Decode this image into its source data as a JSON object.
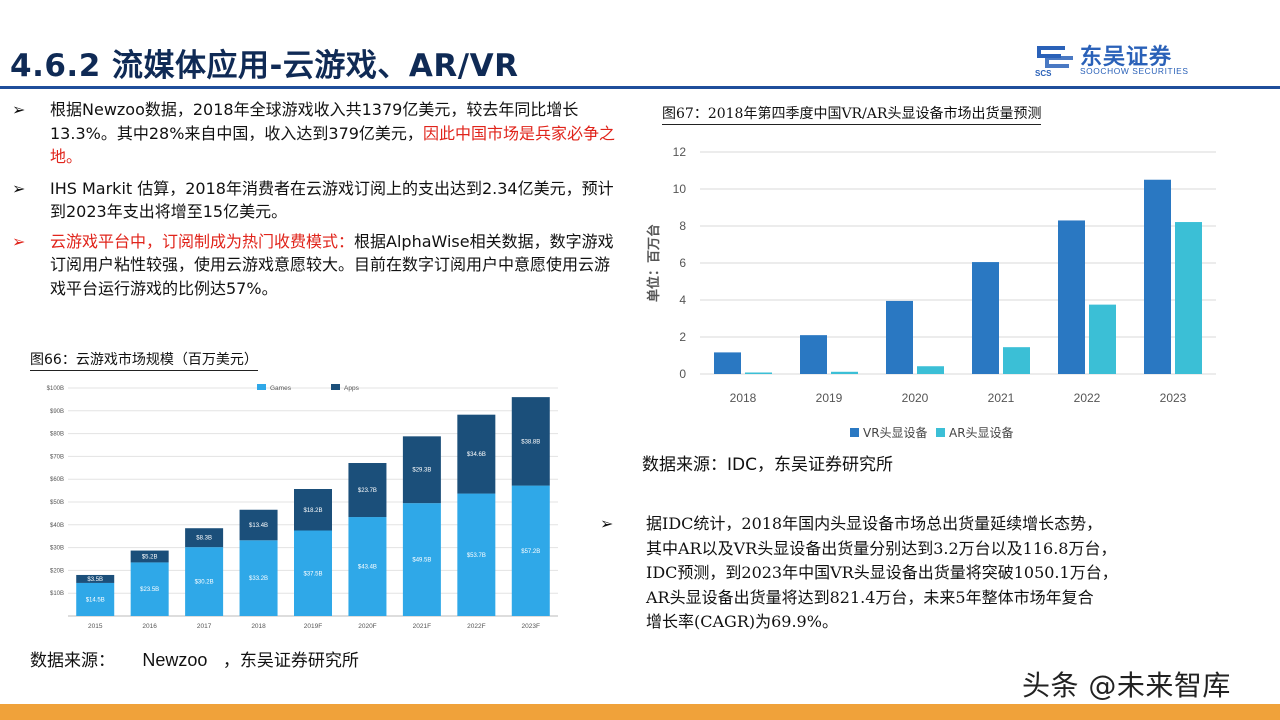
{
  "header": {
    "title": "4.6.2 流媒体应用-云游戏、AR/VR",
    "logo_cn": "东吴证券",
    "logo_en": "SOOCHOW SECURITIES",
    "logo_mark": "SCS"
  },
  "left_bullets": [
    {
      "parts": [
        {
          "text": "根据Newzoo数据，2018年全球游戏收入共1379亿美元，较去年同比增长13.3%。其中28%来自中国，收入达到379亿美元，",
          "red": false
        },
        {
          "text": "因此中国市场是兵家必争之地。",
          "red": true
        }
      ]
    },
    {
      "parts": [
        {
          "text": "IHS Markit 估算，2018年消费者在云游戏订阅上的支出达到2.34亿美元，预计到2023年支出将增至15亿美元。",
          "red": false
        }
      ]
    },
    {
      "arrow_red": true,
      "parts": [
        {
          "text": "云游戏平台中，订阅制成为热门收费模式：",
          "red": true
        },
        {
          "text": "根据AlphaWise相关数据，数字游戏订阅用户粘性较强，使用云游戏意愿较大。目前在数字订阅用户中意愿使用云游戏平台运行游戏的比例达57%。",
          "red": false
        }
      ]
    }
  ],
  "right_bullet": {
    "lines": [
      "据IDC统计，2018年国内头显设备市场总出货量延续增长态势，",
      "其中AR以及VR头显设备出货量分别达到3.2万台以及116.8万台，",
      "IDC预测，到2023年中国VR头显设备出货量将突破1050.1万台，",
      "AR头显设备出货量将达到821.4万台，未来5年整体市场年复合",
      "增长率(CAGR)为69.9%。"
    ]
  },
  "bullet_arrow": "➢",
  "fig66": {
    "caption": "图66：云游戏市场规模（百万美元）",
    "source_parts": [
      "数据来源：",
      "Newzoo",
      "，东吴证券研究所"
    ]
  },
  "fig67": {
    "caption": "图67：2018年第四季度中国VR/AR头显设备市场出货量预测",
    "source": "数据来源：IDC，东吴证券研究所"
  },
  "watermark": "头条 @未来智库",
  "colors": {
    "title": "#0f2a55",
    "accent": "#1f4e9b",
    "red": "#e0241b",
    "games": "#2fa8e8",
    "apps": "#1b4f7a",
    "vr": "#2a78c2",
    "ar": "#3bbfd6",
    "footer": "#f0a23a"
  },
  "chart_data": [
    {
      "type": "bar",
      "stacked": true,
      "categories": [
        "2015",
        "2016",
        "2017",
        "2018",
        "2019F",
        "2020F",
        "2021F",
        "2022F",
        "2023F"
      ],
      "series": [
        {
          "name": "Games",
          "values": [
            14.5,
            23.5,
            30.2,
            33.2,
            37.5,
            43.4,
            49.5,
            53.7,
            57.2
          ],
          "labels": [
            "$14.5B",
            "$23.5B",
            "$30.2B",
            "$33.2B",
            "$37.5B",
            "$43.4B",
            "$49.5B",
            "$53.7B",
            "$57.2B"
          ]
        },
        {
          "name": "Apps",
          "values": [
            3.5,
            5.2,
            8.3,
            13.4,
            18.2,
            23.7,
            29.3,
            34.6,
            38.8
          ],
          "labels": [
            "$3.5B",
            "$5.2B",
            "$8.3B",
            "$13.4B",
            "$18.2B",
            "$23.7B",
            "$29.3B",
            "$34.6B",
            "$38.8B"
          ]
        }
      ],
      "ylim": [
        0,
        100
      ],
      "yticks": [
        10,
        20,
        30,
        40,
        50,
        60,
        70,
        80,
        90,
        100
      ],
      "ytick_labels": [
        "$10B",
        "$20B",
        "$30B",
        "$40B",
        "$50B",
        "$60B",
        "$70B",
        "$80B",
        "$90B",
        "$100B"
      ],
      "legend": "top-left",
      "grid": true
    },
    {
      "type": "bar",
      "categories": [
        "2018",
        "2019",
        "2020",
        "2021",
        "2022",
        "2023"
      ],
      "series": [
        {
          "name": "VR头显设备",
          "values": [
            1.168,
            2.1,
            3.95,
            6.05,
            8.3,
            10.501
          ]
        },
        {
          "name": "AR头显设备",
          "values": [
            0.032,
            0.12,
            0.42,
            1.45,
            3.75,
            8.214
          ]
        }
      ],
      "ylabel": "单位：百万台",
      "ylim": [
        0,
        12
      ],
      "yticks": [
        0,
        2,
        4,
        6,
        8,
        10,
        12
      ],
      "legend": "bottom",
      "grid": true
    }
  ]
}
